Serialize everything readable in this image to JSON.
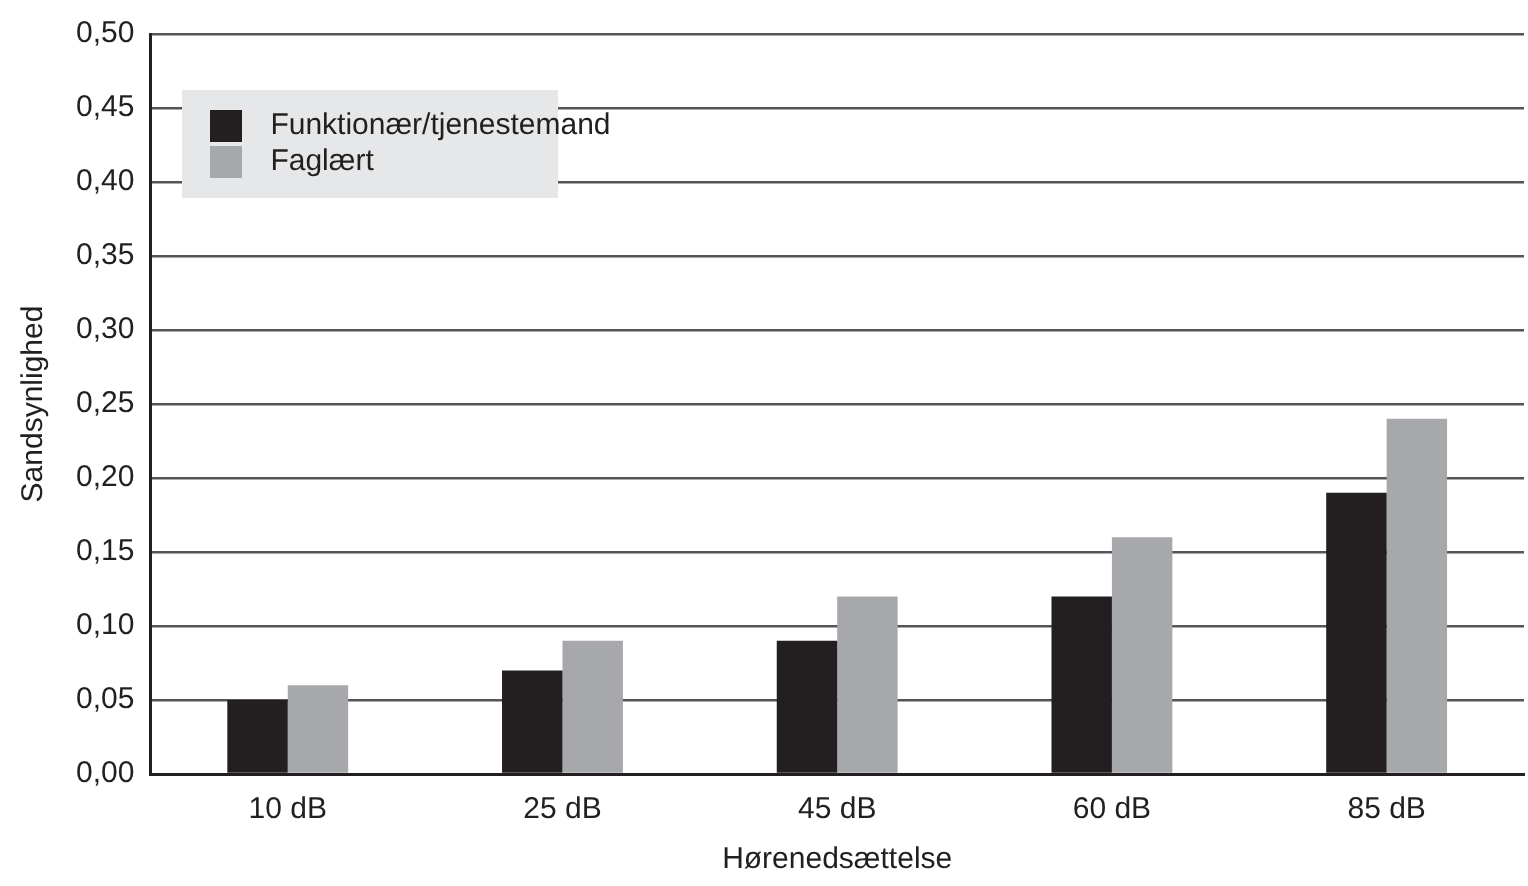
{
  "chart_data": {
    "type": "bar",
    "xlabel": "Hørenedsættelse",
    "ylabel": "Sandsynlighed",
    "categories": [
      "10 dB",
      "25 dB",
      "45 dB",
      "60 dB",
      "85 dB"
    ],
    "series": [
      {
        "name": "Funktionær/tjenestemand",
        "color": "#231f20",
        "values": [
          0.05,
          0.07,
          0.09,
          0.12,
          0.19
        ]
      },
      {
        "name": "Faglært",
        "color": "#a7a8ab",
        "values": [
          0.06,
          0.09,
          0.12,
          0.16,
          0.24
        ]
      }
    ],
    "ylim": [
      0,
      0.5
    ],
    "yticks": [
      {
        "value": 0,
        "label": "0,00"
      },
      {
        "value": 0.05,
        "label": "0,05"
      },
      {
        "value": 0.1,
        "label": "0,10"
      },
      {
        "value": 0.15,
        "label": "0,15"
      },
      {
        "value": 0.2,
        "label": "0,20"
      },
      {
        "value": 0.25,
        "label": "0,25"
      },
      {
        "value": 0.3,
        "label": "0,30"
      },
      {
        "value": 0.35,
        "label": "0,35"
      },
      {
        "value": 0.4,
        "label": "0,40"
      },
      {
        "value": 0.45,
        "label": "0,45"
      },
      {
        "value": 0.5,
        "label": "0,50"
      }
    ],
    "grid": "y",
    "legend": "top left"
  }
}
